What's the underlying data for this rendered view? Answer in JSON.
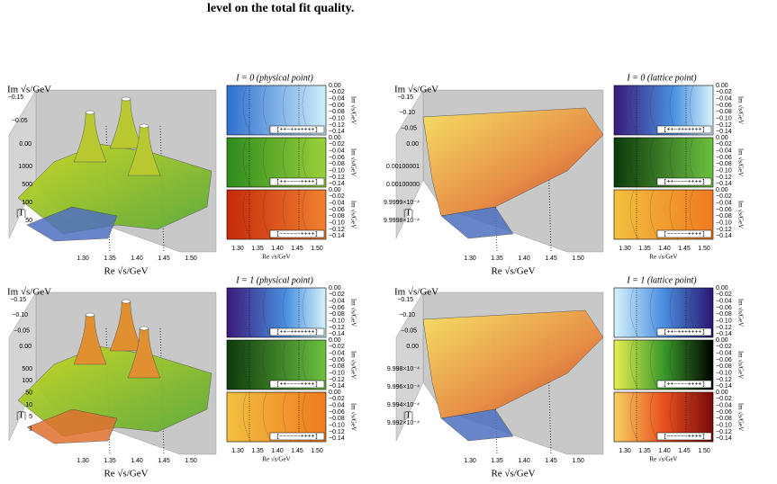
{
  "header": {
    "text": "level on the total fit quality."
  },
  "panels": [
    {
      "title": "I = 0 (physical point)",
      "im_label": "Im √s/GeV",
      "re_label": "Re √s/GeV",
      "abs_label": "|T|",
      "im_ticks": [
        "−0.15",
        "−0.05",
        "0.00"
      ],
      "abs_ticks": [
        "1000",
        "500",
        "100",
        "50"
      ],
      "re_ticks": [
        "1.30",
        "1.35",
        "1.40",
        "1.45",
        "1.50"
      ],
      "contour": {
        "im_label": "Im √s/GeV",
        "re_label": "Re √s/GeV",
        "im_ticks": [
          "0.00",
          "−0.02",
          "−0.04",
          "−0.06",
          "−0.08",
          "−0.10",
          "−0.12",
          "−0.14"
        ],
        "re_ticks": [
          "1.30",
          "1.35",
          "1.40",
          "1.45",
          "1.50"
        ],
        "sheets": [
          "[++−+++++++]",
          "[++−−−−++++]",
          "[−−−−−−++++]"
        ]
      }
    },
    {
      "title": "I = 0 (lattice point)",
      "im_label": "Im √s/GeV",
      "re_label": "Re √s/GeV",
      "abs_label": "|T|",
      "im_ticks": [
        "−0.15",
        "−0.10",
        "−0.05",
        "0.00"
      ],
      "abs_ticks": [
        "0.00100001",
        "0.00100000",
        "9.9999×10⁻⁴",
        "9.9998×10⁻⁴"
      ],
      "re_ticks": [
        "1.30",
        "1.35",
        "1.40",
        "1.45",
        "1.50"
      ],
      "contour": {
        "im_label": "Im √s/GeV",
        "re_label": "Re √s/GeV",
        "im_ticks": [
          "0.00",
          "−0.02",
          "−0.04",
          "−0.06",
          "−0.08",
          "−0.10",
          "−0.12",
          "−0.14"
        ],
        "re_ticks": [
          "1.30",
          "1.35",
          "1.40",
          "1.45",
          "1.50"
        ],
        "sheets": [
          "[++−+++++++]",
          "[++−−−−++++]",
          "[−−−−−−++++]"
        ]
      }
    },
    {
      "title": "I = 1 (physical point)",
      "im_label": "Im √s/GeV",
      "re_label": "Re √s/GeV",
      "abs_label": "|T|",
      "im_ticks": [
        "−0.15",
        "−0.10",
        "−0.05",
        "0.00"
      ],
      "abs_ticks": [
        "500",
        "100",
        "50",
        "10",
        "5",
        "1"
      ],
      "re_ticks": [
        "1.30",
        "1.35",
        "1.40",
        "1.45",
        "1.50"
      ],
      "contour": {
        "im_label": "Im √s/GeV",
        "re_label": "Re √s/GeV",
        "im_ticks": [
          "0.00",
          "−0.02",
          "−0.04",
          "−0.06",
          "−0.08",
          "−0.10",
          "−0.12",
          "−0.14"
        ],
        "re_ticks": [
          "1.30",
          "1.35",
          "1.40",
          "1.45",
          "1.50"
        ],
        "sheets": [
          "[++−+++++++]",
          "[++−−−−++++]",
          "[−−−−−−++++]"
        ]
      }
    },
    {
      "title": "I = 1 (lattice point)",
      "im_label": "Im √s/GeV",
      "re_label": "Re √s/GeV",
      "abs_label": "|T|",
      "im_ticks": [
        "−0.15",
        "−0.10",
        "−0.05",
        "0.00"
      ],
      "abs_ticks": [
        "9.998×10⁻⁴",
        "9.996×10⁻⁴",
        "9.994×10⁻⁴",
        "9.992×10⁻⁴"
      ],
      "re_ticks": [
        "1.30",
        "1.35",
        "1.40",
        "1.45",
        "1.50"
      ],
      "contour": {
        "im_label": "Im √s/GeV",
        "re_label": "Re √s/GeV",
        "im_ticks": [
          "0.00",
          "−0.02",
          "−0.04",
          "−0.06",
          "−0.08",
          "−0.10",
          "−0.12",
          "−0.14"
        ],
        "re_ticks": [
          "1.30",
          "1.35",
          "1.40",
          "1.45",
          "1.50"
        ],
        "sheets": [
          "[++−+++++++]",
          "[++−−−−++++]",
          "[−−−−−−++++]"
        ]
      }
    }
  ]
}
